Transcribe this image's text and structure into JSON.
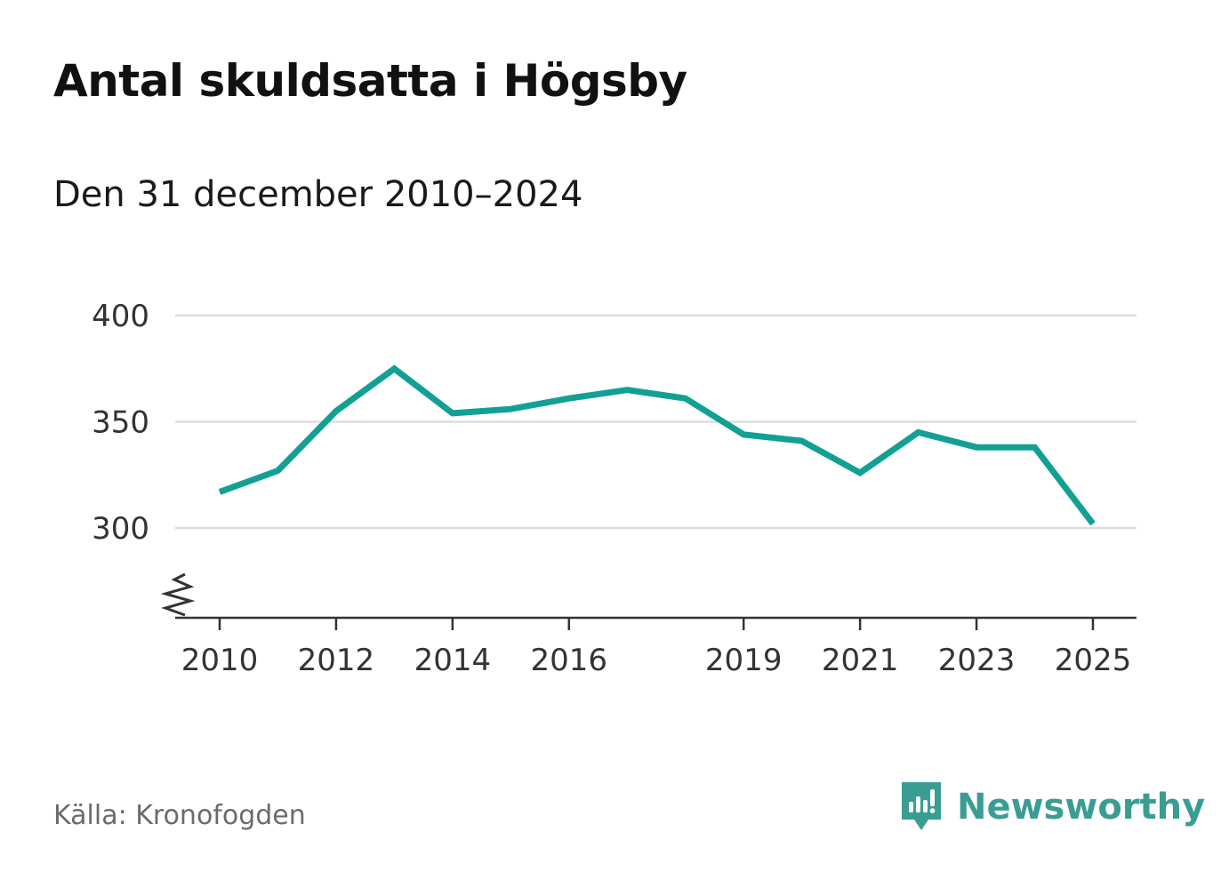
{
  "title": "Antal skuldsatta i Högsby",
  "subtitle": "Den 31 december 2010–2024",
  "source": "Källa: Kronofogden",
  "brand": {
    "name": "Newsworthy",
    "icon": "newsworthy-logo-icon",
    "color": "#3a9d93"
  },
  "colors": {
    "line": "#12a095",
    "grid": "#dddddd",
    "axis": "#333333"
  },
  "chart_data": {
    "type": "line",
    "title": "Antal skuldsatta i Högsby",
    "subtitle": "Den 31 december 2010–2024",
    "xlabel": "",
    "ylabel": "",
    "x": [
      2010,
      2011,
      2012,
      2013,
      2014,
      2015,
      2016,
      2017,
      2018,
      2019,
      2020,
      2021,
      2022,
      2023,
      2024,
      2025
    ],
    "series": [
      {
        "values": [
          317,
          327,
          355,
          375,
          354,
          356,
          361,
          365,
          361,
          344,
          341,
          326,
          345,
          338,
          338,
          302
        ]
      }
    ],
    "x_ticks": [
      "2010",
      "2012",
      "2014",
      "2016",
      "2019",
      "2021",
      "2023",
      "2025"
    ],
    "x_tick_values": [
      2010,
      2012,
      2014,
      2016,
      2019,
      2021,
      2023,
      2025
    ],
    "y_ticks": [
      "400",
      "350",
      "300"
    ],
    "y_tick_values": [
      400,
      350,
      300
    ],
    "xlim": [
      2010,
      2025
    ],
    "ylim": [
      258,
      400
    ],
    "y_axis_break": true,
    "grid": true,
    "legend": "none"
  }
}
